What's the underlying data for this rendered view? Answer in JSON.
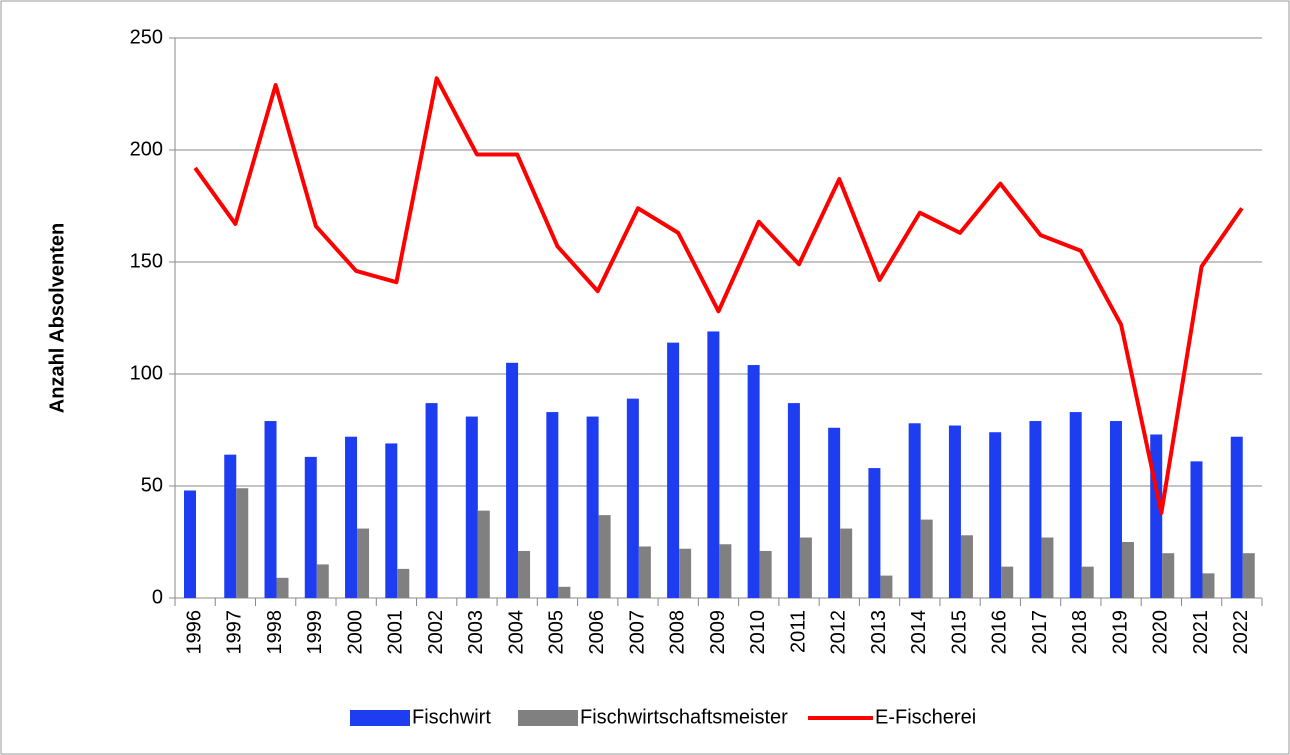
{
  "chart_data": {
    "type": "bar_line",
    "y_label": "Anzahl Absolventen",
    "categories": [
      "1996",
      "1997",
      "1998",
      "1999",
      "2000",
      "2001",
      "2002",
      "2003",
      "2004",
      "2005",
      "2006",
      "2007",
      "2008",
      "2009",
      "2010",
      "2011",
      "2012",
      "2013",
      "2014",
      "2015",
      "2016",
      "2017",
      "2018",
      "2019",
      "2020",
      "2021",
      "2022"
    ],
    "series": [
      {
        "name": "Fischwirt",
        "color": "#1e3cf0",
        "kind": "bar",
        "values": [
          48,
          64,
          79,
          63,
          72,
          69,
          87,
          81,
          105,
          83,
          81,
          89,
          114,
          119,
          104,
          87,
          76,
          58,
          78,
          77,
          74,
          79,
          83,
          79,
          73,
          61,
          72
        ]
      },
      {
        "name": "Fischwirtschaftsmeister",
        "color": "#808080",
        "kind": "bar",
        "values": [
          null,
          49,
          9,
          15,
          31,
          13,
          null,
          39,
          21,
          5,
          37,
          23,
          22,
          24,
          21,
          27,
          31,
          10,
          35,
          28,
          14,
          27,
          14,
          25,
          20,
          11,
          20
        ]
      },
      {
        "name": "E-Fischerei",
        "color": "#ff0000",
        "kind": "line",
        "values": [
          192,
          167,
          229,
          166,
          146,
          141,
          232,
          198,
          198,
          157,
          137,
          174,
          163,
          128,
          168,
          149,
          187,
          142,
          172,
          163,
          185,
          162,
          155,
          122,
          38,
          148,
          174
        ]
      }
    ],
    "ylim": [
      0,
      250
    ],
    "yticks": [
      0,
      50,
      100,
      150,
      200,
      250
    ],
    "grid": true
  }
}
